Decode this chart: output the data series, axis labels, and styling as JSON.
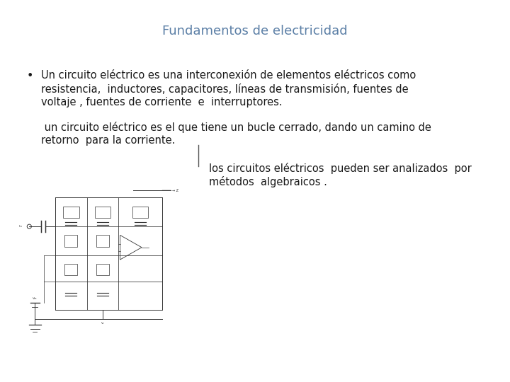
{
  "title": "Fundamentos de electricidad",
  "title_color": "#5B7FA6",
  "title_fontsize": 13,
  "background_color": "#ffffff",
  "bullet_text_line1": "Un circuito eléctrico es una interconexión de elementos eléctricos como",
  "bullet_text_line2": "resistencia,  inductores, capacitores, líneas de transmisión, fuentes de",
  "bullet_text_line3": "voltaje , fuentes de corriente  e  interruptores.",
  "paragraph2_line1": " un circuito eléctrico es el que tiene un bucle cerrado, dando un camino de",
  "paragraph2_line2": "retorno  para la corriente.",
  "paragraph3_line1": "los circuitos eléctricos  pueden ser analizados  por",
  "paragraph3_line2": "métodos  algebraicos .",
  "body_fontsize": 10.5,
  "body_color": "#1a1a1a",
  "bullet_char": "•"
}
